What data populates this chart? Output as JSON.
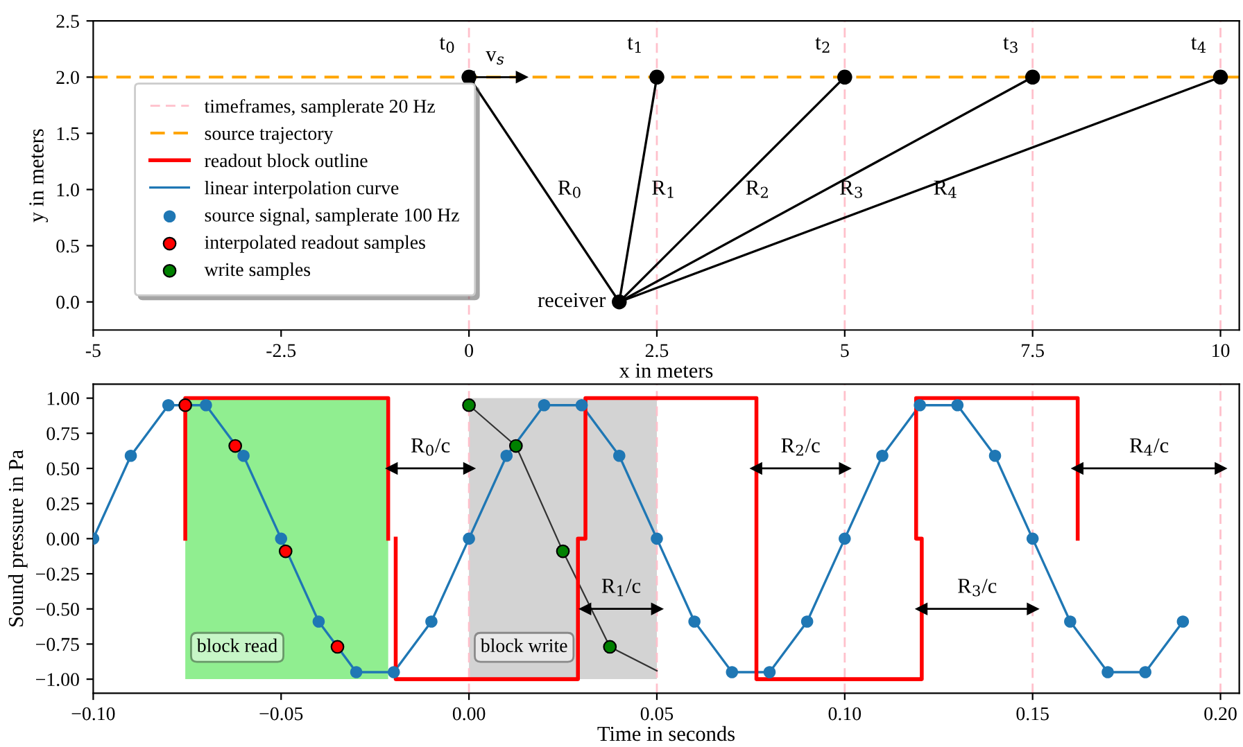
{
  "chart_data": [
    {
      "type": "line",
      "xlabel": "x in meters",
      "ylabel": "y in meters",
      "xlim": [
        -5,
        10.25
      ],
      "xticks": [
        {
          "value": -5,
          "label": "-5"
        },
        {
          "value": -2.5,
          "label": "-2.5"
        },
        0,
        2.5,
        5,
        7.5,
        10
      ],
      "ylim": [
        -0.25,
        2.5
      ],
      "yticks": [
        {
          "value": 0,
          "label": "0.0"
        },
        0.5,
        {
          "value": 1,
          "label": "1.0"
        },
        1.5,
        {
          "value": 2,
          "label": "2.0"
        },
        2.5
      ],
      "grid": false,
      "series": [
        {
          "name": "R$_{0}$",
          "color": "#000000",
          "x": [
            2,
            0
          ],
          "values": [
            0,
            2
          ]
        },
        {
          "name": "R$_{1}$",
          "color": "#000000",
          "x": [
            2,
            2.5
          ],
          "values": [
            0,
            2
          ]
        },
        {
          "name": "R$_{2}$",
          "color": "#000000",
          "x": [
            2,
            5
          ],
          "values": [
            0,
            2
          ]
        },
        {
          "name": "R$_{3}$",
          "color": "#000000",
          "x": [
            2,
            7.5
          ],
          "values": [
            0,
            2
          ]
        },
        {
          "name": "R$_{4}$",
          "color": "#000000",
          "x": [
            2,
            10
          ],
          "values": [
            0,
            2
          ]
        },
        {
          "name": "v$_{s}$",
          "marker": "triangle",
          "color": "#000000",
          "x": [
            0,
            0.7
          ],
          "values": [
            2,
            2
          ]
        },
        {
          "type": "scatter",
          "color": "#000000",
          "x": [
            0,
            2.5,
            5,
            7.5,
            10
          ],
          "values": [
            2,
            2,
            2,
            2,
            2
          ]
        },
        {
          "type": "scatter",
          "color": "#000000",
          "x": [
            2
          ],
          "values": [
            0
          ]
        }
      ],
      "annotations": [
        {
          "text": "t$_{0}$",
          "x": 0,
          "y": 2
        },
        {
          "text": "t$_{1}$",
          "x": 2.5,
          "y": 2
        },
        {
          "text": "t$_{2}$",
          "x": 5,
          "y": 2
        },
        {
          "text": "t$_{3}$",
          "x": 7.5,
          "y": 2
        },
        {
          "text": "t$_{4}$",
          "x": 10,
          "y": 2
        },
        {
          "text": "receiver",
          "x": 2,
          "y": 0
        }
      ],
      "ref_lines": [
        {
          "axis": "x",
          "value": 0,
          "color": "#ffc0cb",
          "line_style": "dashed"
        },
        {
          "axis": "x",
          "value": 2.5,
          "color": "#ffc0cb",
          "line_style": "dashed"
        },
        {
          "axis": "x",
          "value": 5,
          "color": "#ffc0cb",
          "line_style": "dashed"
        },
        {
          "axis": "x",
          "value": 7.5,
          "color": "#ffc0cb",
          "line_style": "dashed"
        },
        {
          "axis": "x",
          "value": 10,
          "color": "#ffc0cb",
          "line_style": "dashed"
        },
        {
          "axis": "y",
          "value": 2,
          "label": "source trajectory",
          "color": "#ffa500",
          "line_style": "dashed"
        }
      ]
    },
    {
      "type": "line",
      "xlabel": "Time in seconds",
      "ylabel": "Sound pressure in Pa",
      "xlim": [
        -0.1,
        0.205
      ],
      "xticks": [
        {
          "value": -0.1,
          "label": "−0.10"
        },
        {
          "value": -0.05,
          "label": "−0.05"
        },
        {
          "value": 0,
          "label": "0.00"
        },
        {
          "value": 0.05,
          "label": "0.05"
        },
        {
          "value": 0.1,
          "label": "0.10"
        },
        {
          "value": 0.15,
          "label": "0.15"
        },
        {
          "value": 0.2,
          "label": "0.20"
        }
      ],
      "ylim": [
        -1.1,
        1.1
      ],
      "yticks": [
        {
          "value": -1,
          "label": "−1.00"
        },
        {
          "value": -0.75,
          "label": "−0.75"
        },
        {
          "value": -0.5,
          "label": "−0.50"
        },
        {
          "value": -0.25,
          "label": "−0.25"
        },
        {
          "value": 0,
          "label": "0.00"
        },
        {
          "value": 0.25,
          "label": "0.25"
        },
        {
          "value": 0.5,
          "label": "0.50"
        },
        {
          "value": 0.75,
          "label": "0.75"
        },
        {
          "value": 1,
          "label": "1.00"
        }
      ],
      "grid": false,
      "legend": "top left",
      "series": [
        {
          "name": "readout block outline",
          "color": "#ff0000",
          "x": [
            -0.0755,
            -0.0755,
            -0.0215,
            -0.0215,
            -0.0205,
            -0.0195,
            -0.0195,
            0.029,
            0.029,
            0.031,
            0.031,
            0.0765,
            0.0765,
            0.1205,
            0.1205,
            0.119,
            0.119,
            0.162,
            0.162
          ],
          "values": [
            0,
            1,
            1,
            0,
            null,
            0,
            -1,
            -1,
            0,
            0,
            1,
            1,
            -1,
            -1,
            0,
            0,
            1,
            1,
            0
          ]
        },
        {
          "name": "linear interpolation curve",
          "color": "#1f77b4",
          "x": [
            -0.1,
            -0.09,
            -0.08,
            -0.07,
            -0.06,
            -0.05,
            -0.04,
            -0.03,
            -0.02,
            -0.01,
            0,
            0.01,
            0.02,
            0.03,
            0.04,
            0.05,
            0.06,
            0.07,
            0.08,
            0.09,
            0.1,
            0.11,
            0.12,
            0.13,
            0.14,
            0.15,
            0.16,
            0.17,
            0.18,
            0.19
          ],
          "values": [
            0,
            0.59,
            0.95,
            0.95,
            0.59,
            0,
            -0.59,
            -0.95,
            -0.95,
            -0.59,
            0,
            0.59,
            0.95,
            0.95,
            0.59,
            0,
            -0.59,
            -0.95,
            -0.95,
            -0.59,
            0,
            0.59,
            0.95,
            0.95,
            0.59,
            0,
            -0.59,
            -0.95,
            -0.95,
            -0.59
          ]
        },
        {
          "type": "scatter",
          "name": "source signal, samplerate 100 Hz",
          "color": "#1f77b4",
          "x": [
            -0.1,
            -0.09,
            -0.08,
            -0.07,
            -0.06,
            -0.05,
            -0.04,
            -0.03,
            -0.02,
            -0.01,
            0,
            0.01,
            0.02,
            0.03,
            0.04,
            0.05,
            0.06,
            0.07,
            0.08,
            0.09,
            0.1,
            0.11,
            0.12,
            0.13,
            0.14,
            0.15,
            0.16,
            0.17,
            0.18,
            0.19
          ],
          "values": [
            0,
            0.59,
            0.95,
            0.95,
            0.59,
            0,
            -0.59,
            -0.95,
            -0.95,
            -0.59,
            0,
            0.59,
            0.95,
            0.95,
            0.59,
            0,
            -0.59,
            -0.95,
            -0.95,
            -0.59,
            0,
            0.59,
            0.95,
            0.95,
            0.59,
            0,
            -0.59,
            -0.95,
            -0.95,
            -0.59
          ]
        },
        {
          "type": "scatter",
          "name": "interpolated readout samples",
          "color": "#ff0000",
          "x": [
            -0.0755,
            -0.0622,
            -0.0488,
            -0.035
          ],
          "values": [
            0.95,
            0.66,
            -0.09,
            -0.77
          ]
        },
        {
          "color": "#333333",
          "x": [
            0,
            0.0125,
            0.025,
            0.0375,
            0.05
          ],
          "values": [
            0.95,
            0.66,
            -0.09,
            -0.77,
            -0.94
          ]
        },
        {
          "type": "scatter",
          "name": "write samples",
          "color": "#008000",
          "x": [
            0,
            0.0125,
            0.025,
            0.0375
          ],
          "values": [
            0.95,
            0.66,
            -0.09,
            -0.77
          ]
        },
        {
          "name": "R$_{0}$/c",
          "marker": "triangle",
          "color": "#000000",
          "x": [
            -0.0205,
            0
          ],
          "values": [
            0.5,
            0.5
          ]
        },
        {
          "name": "R$_{1}$/c",
          "marker": "triangle",
          "color": "#000000",
          "x": [
            0.031,
            0.05
          ],
          "values": [
            -0.5,
            -0.5
          ]
        },
        {
          "name": "R$_{2}$/c",
          "marker": "triangle",
          "color": "#000000",
          "x": [
            0.0765,
            0.1
          ],
          "values": [
            0.5,
            0.5
          ]
        },
        {
          "name": "R$_{3}$/c",
          "marker": "triangle",
          "color": "#000000",
          "x": [
            0.1205,
            0.15
          ],
          "values": [
            -0.5,
            -0.5
          ]
        },
        {
          "name": "R$_{4}$/c",
          "marker": "triangle",
          "color": "#000000",
          "x": [
            0.162,
            0.2
          ],
          "values": [
            0.5,
            0.5
          ]
        }
      ],
      "ref_lines": [
        {
          "axis": "x",
          "value": 0,
          "label": "timeframes, samplerate 20 Hz",
          "color": "#ffc0cb",
          "line_style": "dashed"
        },
        {
          "axis": "x",
          "value": 0.05,
          "color": "#ffc0cb",
          "line_style": "dashed"
        },
        {
          "axis": "x",
          "value": 0.1,
          "color": "#ffc0cb",
          "line_style": "dashed"
        },
        {
          "axis": "x",
          "value": 0.15,
          "color": "#ffc0cb",
          "line_style": "dashed"
        },
        {
          "axis": "x",
          "value": 0.2,
          "color": "#ffc0cb",
          "line_style": "dashed"
        }
      ],
      "bands": [
        {
          "axis": "x",
          "from": -0.0755,
          "to": -0.0215,
          "label": "block read",
          "color": "#90ee90"
        },
        {
          "axis": "x",
          "from": 0,
          "to": 0.05,
          "label": "block write",
          "color": "#d3d3d3"
        }
      ]
    }
  ]
}
